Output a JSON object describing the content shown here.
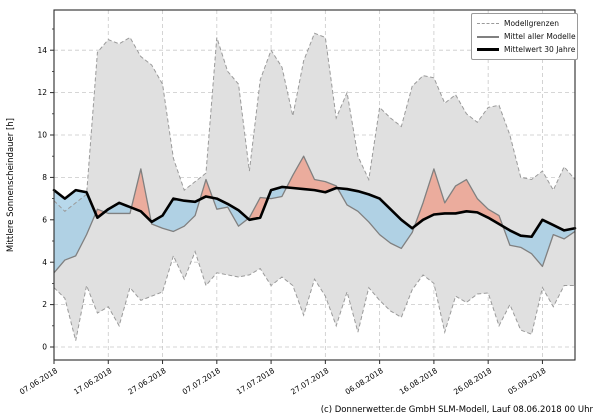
{
  "axes": {
    "ylabel": "Mittlere Sonnenscheindauer [h]",
    "yticks": [
      0,
      2,
      4,
      6,
      8,
      10,
      12,
      14
    ],
    "yminorticks": [
      1,
      3,
      5,
      7,
      9,
      11,
      13,
      15
    ],
    "ylim": [
      -0.6,
      15.9
    ],
    "xtick_labels": [
      "07.06.2018",
      "17.06.2018",
      "27.06.2018",
      "07.07.2018",
      "17.07.2018",
      "27.07.2018",
      "06.08.2018",
      "16.08.2018",
      "26.08.2018",
      "05.09.2018"
    ],
    "xtick_indices": [
      0,
      5,
      10,
      15,
      20,
      25,
      30,
      35,
      40,
      45
    ],
    "grid": "dashed"
  },
  "legend": {
    "position": "upper right",
    "items": [
      {
        "label": "Modellgrenzen",
        "style": "dashed-gray"
      },
      {
        "label": "Mittel aller Modelle",
        "style": "solid-gray"
      },
      {
        "label": "Mittelwert 30 Jahre",
        "style": "thick-black"
      }
    ]
  },
  "footer": {
    "text": "(c) Donnerwetter.de GmbH SLM-Modell, Lauf 08.06.2018 00 Uhr"
  },
  "colors": {
    "envelope_fill": "#e0e0e0",
    "envelope_edge": "#9a9a9a",
    "model_mean_line": "#808080",
    "mean30_line": "#000000",
    "above_fill": "#ee9d8b",
    "below_fill": "#a3cde5",
    "grid": "#c9c9c9",
    "border": "#2b2b2b",
    "background": "#ffffff"
  },
  "chart_data": {
    "type": "line",
    "title": "",
    "xlabel": "",
    "ylabel": "Mittlere Sonnenscheindauer [h]",
    "x_dates": [
      "07.06.2018",
      "09.06.2018",
      "11.06.2018",
      "13.06.2018",
      "15.06.2018",
      "17.06.2018",
      "19.06.2018",
      "21.06.2018",
      "23.06.2018",
      "25.06.2018",
      "27.06.2018",
      "29.06.2018",
      "01.07.2018",
      "03.07.2018",
      "05.07.2018",
      "07.07.2018",
      "09.07.2018",
      "11.07.2018",
      "13.07.2018",
      "15.07.2018",
      "17.07.2018",
      "19.07.2018",
      "21.07.2018",
      "23.07.2018",
      "25.07.2018",
      "27.07.2018",
      "29.07.2018",
      "31.07.2018",
      "02.08.2018",
      "04.08.2018",
      "06.08.2018",
      "08.08.2018",
      "10.08.2018",
      "12.08.2018",
      "14.08.2018",
      "16.08.2018",
      "18.08.2018",
      "20.08.2018",
      "22.08.2018",
      "24.08.2018",
      "26.08.2018",
      "28.08.2018",
      "30.08.2018",
      "01.09.2018",
      "03.09.2018",
      "05.09.2018",
      "07.09.2018",
      "09.09.2018",
      "11.09.2018"
    ],
    "series": [
      {
        "id": "min",
        "name": "Modellgrenzen (Minimum)",
        "values": [
          2.8,
          2.3,
          0.3,
          2.9,
          1.6,
          1.9,
          1.0,
          2.8,
          2.2,
          2.4,
          2.6,
          4.3,
          3.2,
          4.5,
          2.9,
          3.5,
          3.4,
          3.3,
          3.4,
          3.7,
          2.9,
          3.3,
          2.9,
          1.5,
          3.2,
          2.4,
          1.0,
          2.6,
          0.7,
          2.8,
          2.2,
          1.7,
          1.4,
          2.7,
          3.4,
          3.0,
          0.7,
          2.4,
          2.1,
          2.5,
          2.55,
          1.0,
          2.0,
          0.8,
          0.6,
          2.8,
          1.9,
          2.9,
          2.9
        ]
      },
      {
        "id": "max",
        "name": "Modellgrenzen (Maximum)",
        "values": [
          6.9,
          6.4,
          6.8,
          7.2,
          13.9,
          14.5,
          14.3,
          14.6,
          13.7,
          13.3,
          12.4,
          8.9,
          7.4,
          7.8,
          8.2,
          14.6,
          13.0,
          12.4,
          8.3,
          12.6,
          14.0,
          13.2,
          10.9,
          13.5,
          14.8,
          14.6,
          10.8,
          12.0,
          9.0,
          7.9,
          11.3,
          10.8,
          10.4,
          12.3,
          12.8,
          12.7,
          11.5,
          11.9,
          11.0,
          10.6,
          11.3,
          11.4,
          10.0,
          8.0,
          7.9,
          8.3,
          7.4,
          8.5,
          7.9
        ]
      },
      {
        "id": "mean",
        "name": "Mittel aller Modelle",
        "values": [
          3.5,
          4.1,
          4.3,
          5.3,
          6.5,
          6.3,
          6.3,
          6.3,
          8.4,
          5.8,
          5.6,
          5.45,
          5.7,
          6.2,
          7.9,
          6.5,
          6.6,
          5.7,
          6.1,
          7.05,
          7.0,
          7.1,
          8.1,
          9.0,
          7.9,
          7.8,
          7.6,
          6.7,
          6.4,
          5.9,
          5.3,
          4.9,
          4.65,
          5.4,
          6.8,
          8.4,
          6.8,
          7.6,
          7.9,
          7.0,
          6.5,
          6.2,
          4.8,
          4.7,
          4.4,
          3.8,
          5.3,
          5.1,
          5.45
        ]
      },
      {
        "id": "mean30",
        "name": "Mittelwert 30 Jahre",
        "values": [
          7.4,
          7.0,
          7.4,
          7.3,
          6.1,
          6.5,
          6.8,
          6.6,
          6.4,
          5.9,
          6.2,
          7.0,
          6.9,
          6.85,
          7.1,
          7.0,
          6.75,
          6.45,
          6.0,
          6.1,
          7.4,
          7.55,
          7.5,
          7.45,
          7.4,
          7.3,
          7.5,
          7.45,
          7.35,
          7.2,
          7.0,
          6.5,
          6.0,
          5.6,
          6.0,
          6.25,
          6.3,
          6.3,
          6.4,
          6.35,
          6.1,
          5.8,
          5.5,
          5.25,
          5.2,
          6.0,
          5.75,
          5.5,
          5.6
        ]
      }
    ],
    "fills": {
      "red": "Mittel aller Modelle ueber Mittelwert 30 Jahre",
      "blue": "Mittel aller Modelle unter Mittelwert 30 Jahre",
      "gray_band": "Spannweite der Modelle (Modellgrenzen)"
    },
    "legend_position": "upper right"
  }
}
